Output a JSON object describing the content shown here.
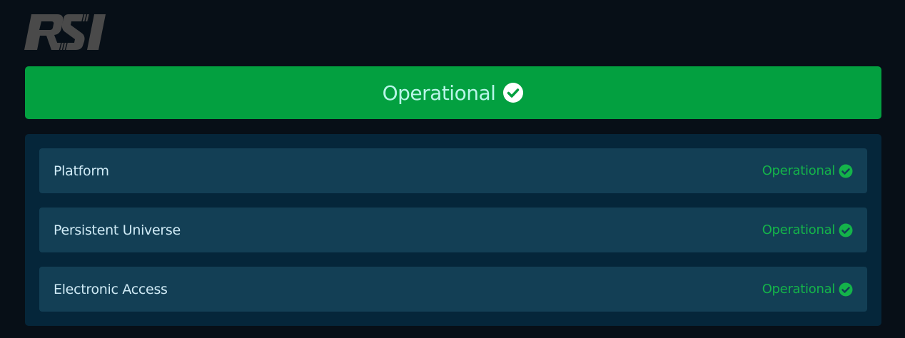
{
  "logo": {
    "text": "RSI",
    "color": "#4a4a4a"
  },
  "banner": {
    "status": "Operational",
    "icon": "check-circle-icon",
    "color": "#03a040",
    "text_color": "#b8f5e8"
  },
  "components": [
    {
      "name": "Platform",
      "status": "Operational",
      "icon": "check-circle-icon"
    },
    {
      "name": "Persistent Universe",
      "status": "Operational",
      "icon": "check-circle-icon"
    },
    {
      "name": "Electronic Access",
      "status": "Operational",
      "icon": "check-circle-icon"
    }
  ],
  "colors": {
    "status_ok": "#14b34a",
    "panel": "#05263a",
    "row": "#133f55",
    "background": "#070f17"
  }
}
